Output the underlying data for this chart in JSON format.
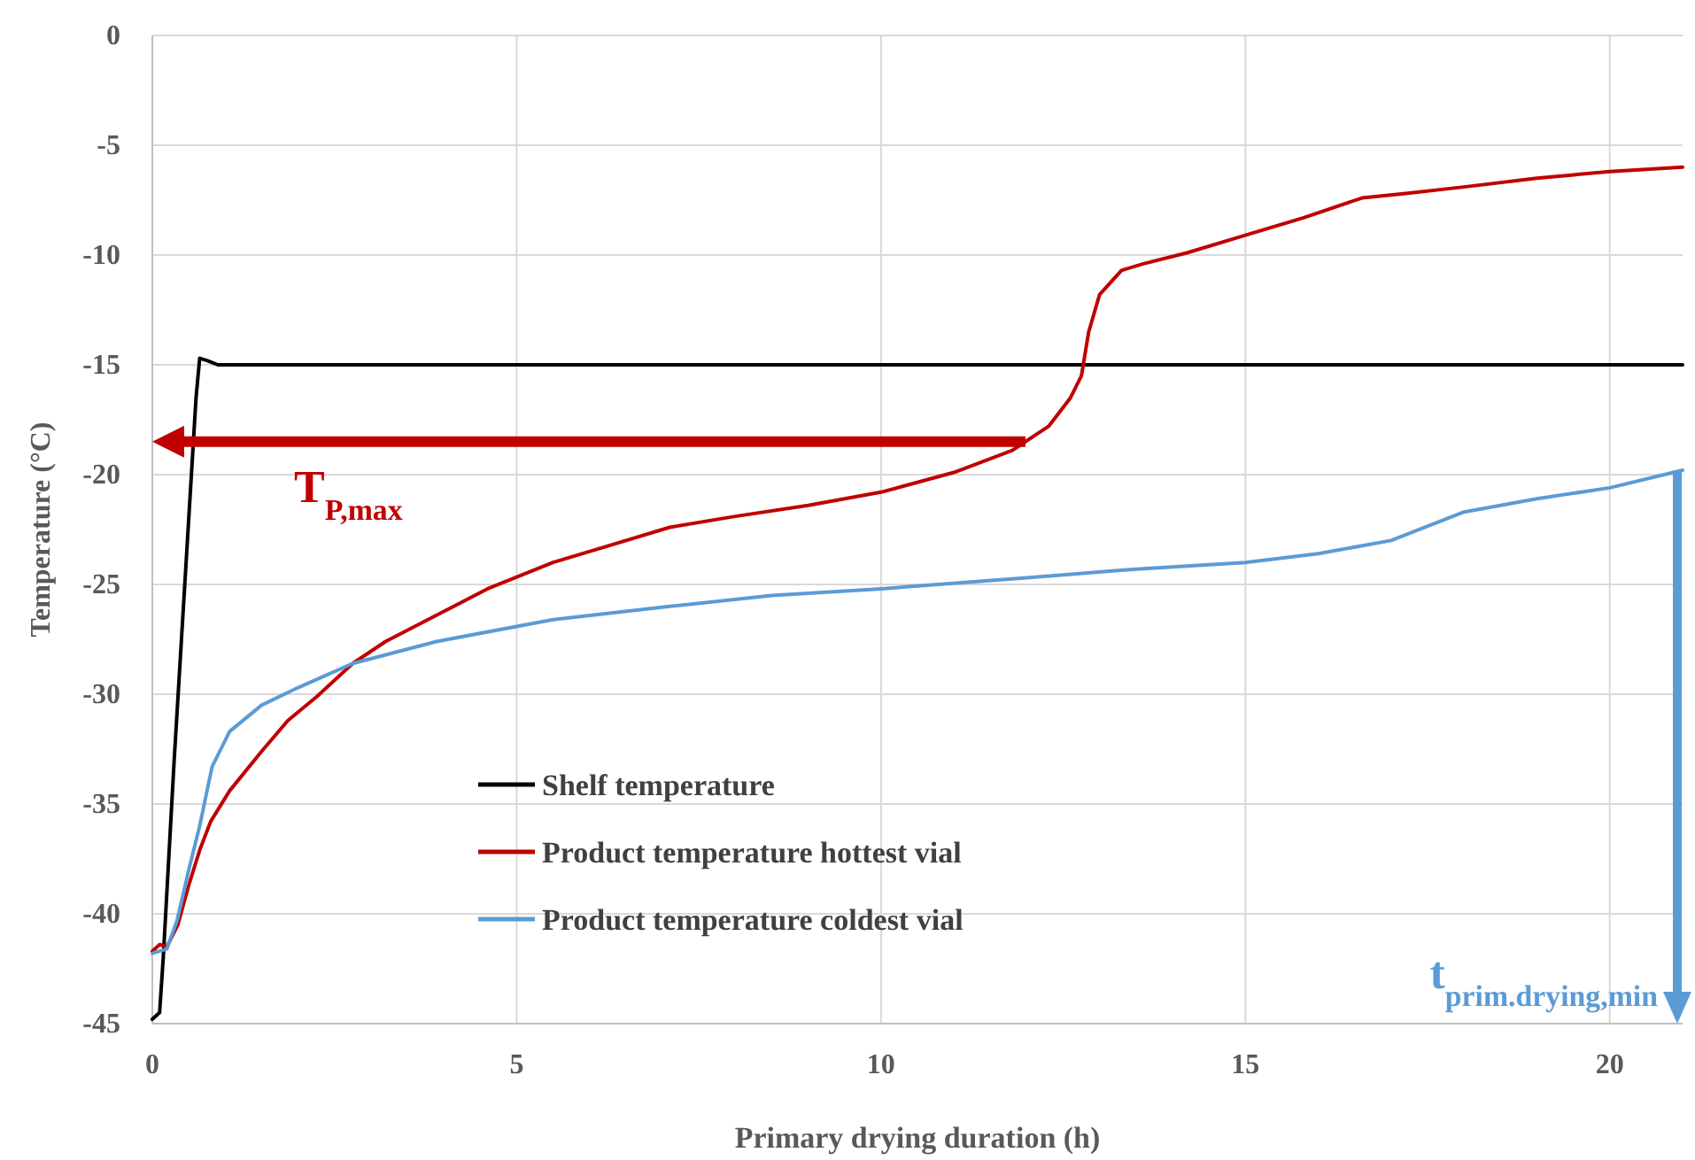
{
  "chart_data": {
    "type": "line",
    "xlabel": "Primary drying duration (h)",
    "ylabel": "Temperature (°C)",
    "xlim": [
      0,
      21
    ],
    "xticks": [
      0,
      5,
      10,
      15,
      20
    ],
    "ylim": [
      -45,
      0
    ],
    "yticks": [
      0,
      -5,
      -10,
      -15,
      -20,
      -25,
      -30,
      -35,
      -40,
      -45
    ],
    "grid": true,
    "legend": "bottom left",
    "line_style": "solid",
    "marker": "none",
    "series": [
      {
        "name": "Shelf temperature",
        "color": "#000000",
        "x": [
          0,
          0.1,
          0.15,
          0.3,
          0.5,
          0.6,
          0.65,
          0.75,
          0.9,
          5,
          10,
          15,
          21
        ],
        "values": [
          -44.8,
          -44.5,
          -42,
          -33,
          -22,
          -16.5,
          -14.7,
          -14.8,
          -15,
          -15,
          -15,
          -15,
          -15
        ]
      },
      {
        "name": "Product temperature hottest vial",
        "color": "#c00000",
        "x": [
          0,
          0.1,
          0.2,
          0.35,
          0.5,
          0.65,
          0.8,
          1.06,
          1.5,
          1.86,
          2.26,
          2.75,
          3.2,
          3.9,
          4.6,
          5.5,
          6.3,
          7.1,
          8,
          9,
          10,
          11,
          11.8,
          12.3,
          12.6,
          12.75,
          12.85,
          13,
          13.3,
          13.6,
          14.2,
          15,
          15.8,
          16.6,
          17.2,
          18,
          19,
          20,
          21
        ],
        "values": [
          -41.7,
          -41.4,
          -41.5,
          -40.5,
          -38.7,
          -37.1,
          -35.8,
          -34.4,
          -32.6,
          -31.2,
          -30.1,
          -28.6,
          -27.6,
          -26.4,
          -25.2,
          -24,
          -23.2,
          -22.4,
          -21.9,
          -21.4,
          -20.8,
          -19.9,
          -18.9,
          -17.8,
          -16.5,
          -15.5,
          -13.5,
          -11.8,
          -10.7,
          -10.4,
          -9.9,
          -9.1,
          -8.3,
          -7.4,
          -7.2,
          -6.9,
          -6.5,
          -6.2,
          -6
        ]
      },
      {
        "name": "Product temperature coldest vial",
        "color": "#5b9bd5",
        "x": [
          0,
          0.2,
          0.34,
          0.5,
          0.65,
          0.82,
          1.06,
          1.5,
          2,
          2.75,
          3.9,
          5.5,
          7.1,
          8.5,
          10,
          12,
          13.5,
          15,
          16,
          17,
          18,
          19,
          20,
          21
        ],
        "values": [
          -41.8,
          -41.6,
          -40.3,
          -38,
          -36,
          -33.3,
          -31.7,
          -30.5,
          -29.7,
          -28.6,
          -27.6,
          -26.6,
          -26,
          -25.5,
          -25.2,
          -24.7,
          -24.3,
          -24,
          -23.6,
          -23,
          -21.7,
          -21.1,
          -20.6,
          -19.8
        ]
      }
    ],
    "ref_lines": [
      {
        "axis": "y",
        "value": -18.5,
        "label": "T$_{P,max}$",
        "color": "#c00000"
      },
      {
        "axis": "x",
        "value": 21,
        "label": "t$_{prim.drying,min}$",
        "color": "#5b9bd5"
      }
    ]
  }
}
